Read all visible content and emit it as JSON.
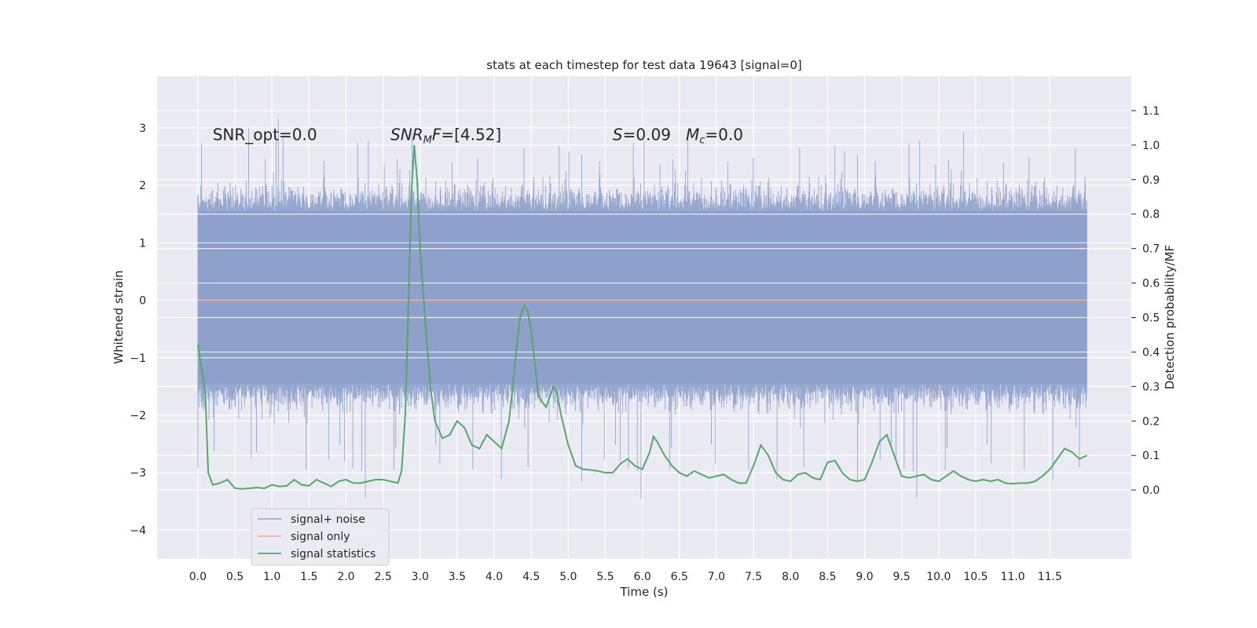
{
  "chart_data": {
    "type": "line",
    "title": "stats at each timestep for test data 19643 [signal=0]",
    "xlabel": "Time (s)",
    "ylabel_left": "Whitened strain",
    "ylabel_right": "Detection probability/MF",
    "xlim": [
      -0.55,
      12.6
    ],
    "ylim_left": [
      -4.5,
      3.9
    ],
    "ylim_right": [
      -0.2,
      1.2
    ],
    "x_ticks": [
      0.0,
      0.5,
      1.0,
      1.5,
      2.0,
      2.5,
      3.0,
      3.5,
      4.0,
      4.5,
      5.0,
      5.5,
      6.0,
      6.5,
      7.0,
      7.5,
      8.0,
      8.5,
      9.0,
      9.5,
      10.0,
      10.5,
      11.0,
      11.5
    ],
    "x_tick_labels": [
      "0.0",
      "0.5",
      "1.0",
      "1.5",
      "2.0",
      "2.5",
      "3.0",
      "3.5",
      "4.0",
      "4.5",
      "5.0",
      "5.5",
      "6.0",
      "6.5",
      "7.0",
      "7.5",
      "8.0",
      "8.5",
      "9.0",
      "9.5",
      "10.0",
      "10.5",
      "11.0",
      "11.5"
    ],
    "y_left_ticks": [
      -4,
      -3,
      -2,
      -1,
      0,
      1,
      2,
      3
    ],
    "y_left_tick_labels": [
      "−4",
      "−3",
      "−2",
      "−1",
      "0",
      "1",
      "2",
      "3"
    ],
    "y_right_ticks": [
      0.0,
      0.1,
      0.2,
      0.3,
      0.4,
      0.5,
      0.6,
      0.7,
      0.8,
      0.9,
      1.0,
      1.1
    ],
    "y_right_tick_labels": [
      "0.0",
      "0.1",
      "0.2",
      "0.3",
      "0.4",
      "0.5",
      "0.6",
      "0.7",
      "0.8",
      "0.9",
      "1.0",
      "1.1"
    ],
    "grid": true,
    "legend_position": "lower-left",
    "annotations": [
      {
        "id": "snr-opt",
        "text": "SNR_opt=0.0",
        "x": 0.2,
        "y_right": 1.015
      },
      {
        "id": "snr-mf",
        "text": "SNR_MF=[4.52]",
        "x": 2.6,
        "y_right": 1.015
      },
      {
        "id": "stat-mc",
        "text": "S=0.09   M_c=0.0",
        "x": 5.6,
        "y_right": 1.015
      }
    ],
    "series": [
      {
        "name": "signal+ noise",
        "type": "noise",
        "color": "#8da0cb",
        "x_range": [
          0.0,
          12.0
        ],
        "core_band": [
          -1.45,
          1.55
        ],
        "occasional_extremes": [
          -4.1,
          3.6
        ]
      },
      {
        "name": "signal only",
        "type": "line",
        "color": "#e5ae95",
        "x": [
          0.0,
          12.0
        ],
        "y": [
          0.0,
          0.0
        ]
      },
      {
        "name": "signal statistics",
        "type": "line",
        "axis": "right",
        "color": "#55a868",
        "x": [
          0.0,
          0.1,
          0.14,
          0.2,
          0.3,
          0.4,
          0.5,
          0.6,
          0.7,
          0.8,
          0.9,
          1.0,
          1.1,
          1.2,
          1.3,
          1.4,
          1.5,
          1.6,
          1.7,
          1.8,
          1.9,
          2.0,
          2.1,
          2.2,
          2.3,
          2.4,
          2.5,
          2.6,
          2.7,
          2.75,
          2.8,
          2.85,
          2.88,
          2.92,
          2.96,
          3.0,
          3.05,
          3.1,
          3.15,
          3.2,
          3.3,
          3.4,
          3.5,
          3.6,
          3.7,
          3.8,
          3.9,
          4.0,
          4.1,
          4.2,
          4.25,
          4.3,
          4.35,
          4.4,
          4.45,
          4.5,
          4.6,
          4.7,
          4.8,
          4.85,
          4.9,
          5.0,
          5.1,
          5.2,
          5.3,
          5.4,
          5.5,
          5.6,
          5.7,
          5.8,
          5.9,
          6.0,
          6.1,
          6.15,
          6.2,
          6.3,
          6.4,
          6.5,
          6.6,
          6.7,
          6.8,
          6.9,
          7.0,
          7.1,
          7.2,
          7.3,
          7.4,
          7.5,
          7.6,
          7.7,
          7.8,
          7.9,
          8.0,
          8.1,
          8.2,
          8.3,
          8.4,
          8.5,
          8.6,
          8.7,
          8.8,
          8.9,
          9.0,
          9.1,
          9.2,
          9.3,
          9.4,
          9.5,
          9.6,
          9.7,
          9.8,
          9.9,
          10.0,
          10.1,
          10.2,
          10.3,
          10.4,
          10.5,
          10.6,
          10.7,
          10.8,
          10.9,
          11.0,
          11.1,
          11.2,
          11.3,
          11.4,
          11.5,
          11.6,
          11.7,
          11.8,
          11.9,
          12.0
        ],
        "y": [
          0.42,
          0.28,
          0.05,
          0.015,
          0.02,
          0.03,
          0.005,
          0.003,
          0.005,
          0.007,
          0.005,
          0.015,
          0.01,
          0.012,
          0.03,
          0.015,
          0.012,
          0.03,
          0.02,
          0.01,
          0.025,
          0.03,
          0.02,
          0.02,
          0.025,
          0.03,
          0.03,
          0.025,
          0.02,
          0.055,
          0.22,
          0.6,
          0.85,
          1.0,
          0.9,
          0.7,
          0.55,
          0.4,
          0.28,
          0.2,
          0.15,
          0.16,
          0.2,
          0.18,
          0.13,
          0.12,
          0.16,
          0.14,
          0.12,
          0.2,
          0.3,
          0.41,
          0.5,
          0.535,
          0.52,
          0.46,
          0.27,
          0.24,
          0.3,
          0.28,
          0.22,
          0.13,
          0.07,
          0.06,
          0.058,
          0.055,
          0.05,
          0.05,
          0.075,
          0.09,
          0.07,
          0.06,
          0.11,
          0.155,
          0.14,
          0.1,
          0.07,
          0.05,
          0.04,
          0.055,
          0.045,
          0.035,
          0.04,
          0.045,
          0.03,
          0.02,
          0.02,
          0.07,
          0.13,
          0.1,
          0.05,
          0.03,
          0.025,
          0.045,
          0.05,
          0.035,
          0.03,
          0.08,
          0.085,
          0.05,
          0.03,
          0.025,
          0.03,
          0.08,
          0.14,
          0.16,
          0.1,
          0.04,
          0.035,
          0.04,
          0.045,
          0.03,
          0.025,
          0.04,
          0.055,
          0.04,
          0.03,
          0.025,
          0.03,
          0.025,
          0.03,
          0.02,
          0.018,
          0.02,
          0.02,
          0.025,
          0.04,
          0.06,
          0.09,
          0.12,
          0.11,
          0.09,
          0.1
        ]
      }
    ]
  }
}
